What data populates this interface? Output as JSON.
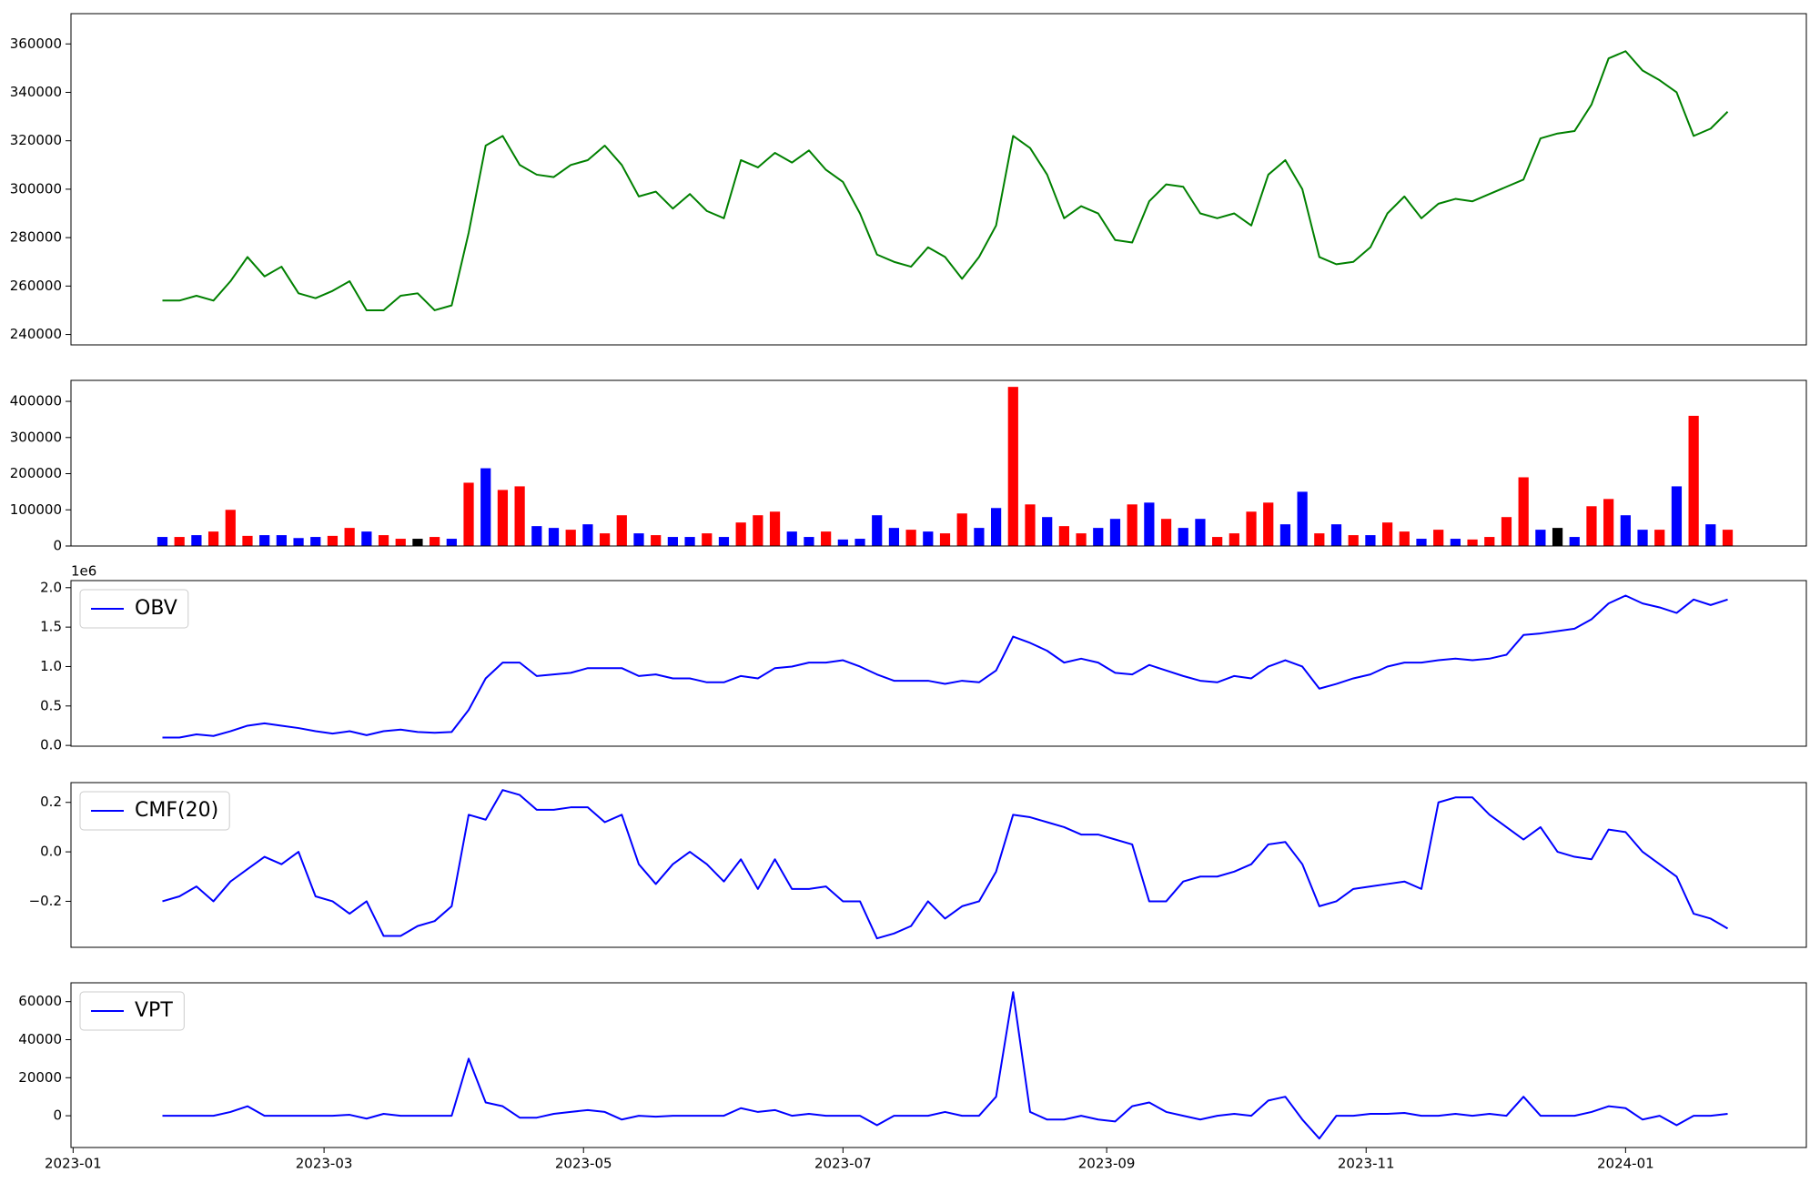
{
  "chart_data": [
    {
      "type": "line",
      "color": "#008000",
      "x": [
        21,
        25,
        29,
        33,
        37,
        41,
        45,
        49,
        53,
        57,
        61,
        65,
        69,
        73,
        77,
        81,
        85,
        89,
        93,
        97,
        101,
        105,
        109,
        113,
        117,
        121,
        125,
        129,
        133,
        137,
        141,
        145,
        149,
        153,
        157,
        161,
        165,
        169,
        173,
        177,
        181,
        185,
        189,
        193,
        197,
        201,
        205,
        209,
        213,
        217,
        221,
        225,
        229,
        233,
        237,
        241,
        245,
        249,
        253,
        257,
        261,
        265,
        269,
        273,
        277,
        281,
        285,
        289,
        293,
        297,
        301,
        305,
        309,
        313,
        317,
        321,
        325,
        329,
        333,
        337,
        341,
        345,
        349,
        353,
        357,
        361,
        365,
        369,
        373,
        377,
        381,
        385,
        389
      ],
      "values": [
        254000,
        254000,
        256000,
        254000,
        262000,
        272000,
        264000,
        268000,
        257000,
        255000,
        258000,
        262000,
        250000,
        250000,
        256000,
        257000,
        250000,
        252000,
        282000,
        318000,
        322000,
        310000,
        306000,
        305000,
        310000,
        312000,
        318000,
        310000,
        297000,
        299000,
        292000,
        298000,
        291000,
        288000,
        312000,
        309000,
        315000,
        311000,
        316000,
        308000,
        303000,
        290000,
        273000,
        270000,
        268000,
        276000,
        272000,
        263000,
        272000,
        285000,
        322000,
        317000,
        306000,
        288000,
        293000,
        290000,
        279000,
        278000,
        295000,
        302000,
        301000,
        290000,
        288000,
        290000,
        285000,
        306000,
        312000,
        300000,
        272000,
        269000,
        270000,
        276000,
        290000,
        297000,
        288000,
        294000,
        296000,
        295000,
        298000,
        301000,
        304000,
        321000,
        323000,
        324000,
        335000,
        354000,
        357000,
        349000,
        345000,
        340000,
        322000,
        325000,
        332000
      ],
      "xlim": [
        -0.5,
        407.5
      ],
      "ylim": [
        235700,
        372500
      ],
      "yticks": [
        240000,
        260000,
        280000,
        300000,
        320000,
        340000,
        360000
      ]
    },
    {
      "type": "bar",
      "x": [
        21,
        25,
        29,
        33,
        37,
        41,
        45,
        49,
        53,
        57,
        61,
        65,
        69,
        73,
        77,
        81,
        85,
        89,
        93,
        97,
        101,
        105,
        109,
        113,
        117,
        121,
        125,
        129,
        133,
        137,
        141,
        145,
        149,
        153,
        157,
        161,
        165,
        169,
        173,
        177,
        181,
        185,
        189,
        193,
        197,
        201,
        205,
        209,
        213,
        217,
        221,
        225,
        229,
        233,
        237,
        241,
        245,
        249,
        253,
        257,
        261,
        265,
        269,
        273,
        277,
        281,
        285,
        289,
        293,
        297,
        301,
        305,
        309,
        313,
        317,
        321,
        325,
        329,
        333,
        337,
        341,
        345,
        349,
        353,
        357,
        361,
        365,
        369,
        373,
        377,
        381,
        385,
        389
      ],
      "values": [
        25000,
        25000,
        30000,
        40000,
        100000,
        28000,
        30000,
        30000,
        22000,
        25000,
        28000,
        50000,
        40000,
        30000,
        20000,
        20000,
        25000,
        20000,
        175000,
        215000,
        155000,
        165000,
        55000,
        50000,
        45000,
        60000,
        35000,
        85000,
        35000,
        30000,
        25000,
        25000,
        35000,
        25000,
        65000,
        85000,
        95000,
        40000,
        25000,
        40000,
        18000,
        20000,
        85000,
        50000,
        45000,
        40000,
        35000,
        90000,
        50000,
        105000,
        440000,
        115000,
        80000,
        55000,
        35000,
        50000,
        75000,
        115000,
        120000,
        75000,
        50000,
        75000,
        25000,
        35000,
        95000,
        120000,
        60000,
        150000,
        35000,
        60000,
        30000,
        30000,
        65000,
        40000,
        20000,
        45000,
        20000,
        18000,
        25000,
        80000,
        190000,
        45000,
        50000,
        25000,
        110000,
        130000,
        85000,
        45000,
        45000,
        165000,
        360000,
        60000,
        45000
      ],
      "colors": [
        "blue",
        "red",
        "blue",
        "red",
        "red",
        "red",
        "blue",
        "blue",
        "blue",
        "blue",
        "red",
        "red",
        "blue",
        "red",
        "red",
        "black",
        "red",
        "blue",
        "red",
        "blue",
        "red",
        "red",
        "blue",
        "blue",
        "red",
        "blue",
        "red",
        "red",
        "blue",
        "red",
        "blue",
        "blue",
        "red",
        "blue",
        "red",
        "red",
        "red",
        "blue",
        "blue",
        "red",
        "blue",
        "blue",
        "blue",
        "blue",
        "red",
        "blue",
        "red",
        "red",
        "blue",
        "blue",
        "red",
        "red",
        "blue",
        "red",
        "red",
        "blue",
        "blue",
        "red",
        "blue",
        "red",
        "blue",
        "blue",
        "red",
        "red",
        "red",
        "red",
        "blue",
        "blue",
        "red",
        "blue",
        "red",
        "blue",
        "red",
        "red",
        "blue",
        "red",
        "blue",
        "red",
        "red",
        "red",
        "red",
        "blue",
        "black",
        "blue",
        "red",
        "red",
        "blue",
        "blue",
        "red",
        "blue",
        "red",
        "blue",
        "red"
      ],
      "xlim": [
        -0.5,
        407.5
      ],
      "ylim": [
        0,
        458000
      ],
      "yticks": [
        0,
        100000,
        200000,
        300000,
        400000
      ]
    },
    {
      "type": "line",
      "legend": "upper left",
      "offset_label": "1e6",
      "x": [
        21,
        25,
        29,
        33,
        37,
        41,
        45,
        49,
        53,
        57,
        61,
        65,
        69,
        73,
        77,
        81,
        85,
        89,
        93,
        97,
        101,
        105,
        109,
        113,
        117,
        121,
        125,
        129,
        133,
        137,
        141,
        145,
        149,
        153,
        157,
        161,
        165,
        169,
        173,
        177,
        181,
        185,
        189,
        193,
        197,
        201,
        205,
        209,
        213,
        217,
        221,
        225,
        229,
        233,
        237,
        241,
        245,
        249,
        253,
        257,
        261,
        265,
        269,
        273,
        277,
        281,
        285,
        289,
        293,
        297,
        301,
        305,
        309,
        313,
        317,
        321,
        325,
        329,
        333,
        337,
        341,
        345,
        349,
        353,
        357,
        361,
        365,
        369,
        373,
        377,
        381,
        385,
        389
      ],
      "series": [
        {
          "name": "OBV",
          "color": "#0000ff",
          "values": [
            0.1,
            0.1,
            0.14,
            0.12,
            0.18,
            0.25,
            0.28,
            0.25,
            0.22,
            0.18,
            0.15,
            0.18,
            0.13,
            0.18,
            0.2,
            0.17,
            0.16,
            0.17,
            0.45,
            0.85,
            1.05,
            1.05,
            0.88,
            0.9,
            0.92,
            0.98,
            0.98,
            0.98,
            0.88,
            0.9,
            0.85,
            0.85,
            0.8,
            0.8,
            0.88,
            0.85,
            0.98,
            1.0,
            1.05,
            1.05,
            1.08,
            1.0,
            0.9,
            0.82,
            0.82,
            0.82,
            0.78,
            0.82,
            0.8,
            0.95,
            1.38,
            1.3,
            1.2,
            1.05,
            1.1,
            1.05,
            0.92,
            0.9,
            1.02,
            0.95,
            0.88,
            0.82,
            0.8,
            0.88,
            0.85,
            1.0,
            1.08,
            1.0,
            0.72,
            0.78,
            0.85,
            0.9,
            1.0,
            1.05,
            1.05,
            1.08,
            1.1,
            1.08,
            1.1,
            1.15,
            1.4,
            1.42,
            1.45,
            1.48,
            1.6,
            1.8,
            1.9,
            1.8,
            1.75,
            1.68,
            1.85,
            1.78,
            1.85
          ]
        }
      ],
      "xlim": [
        -0.5,
        407.5
      ],
      "ylim": [
        -0.01,
        2.09
      ],
      "yticks": [
        {
          "value": 0,
          "label": "0.0"
        },
        0.5,
        {
          "value": 1,
          "label": "1.0"
        },
        1.5,
        {
          "value": 2,
          "label": "2.0"
        }
      ]
    },
    {
      "type": "line",
      "legend": "upper left",
      "x": [
        21,
        25,
        29,
        33,
        37,
        41,
        45,
        49,
        53,
        57,
        61,
        65,
        69,
        73,
        77,
        81,
        85,
        89,
        93,
        97,
        101,
        105,
        109,
        113,
        117,
        121,
        125,
        129,
        133,
        137,
        141,
        145,
        149,
        153,
        157,
        161,
        165,
        169,
        173,
        177,
        181,
        185,
        189,
        193,
        197,
        201,
        205,
        209,
        213,
        217,
        221,
        225,
        229,
        233,
        237,
        241,
        245,
        249,
        253,
        257,
        261,
        265,
        269,
        273,
        277,
        281,
        285,
        289,
        293,
        297,
        301,
        305,
        309,
        313,
        317,
        321,
        325,
        329,
        333,
        337,
        341,
        345,
        349,
        353,
        357,
        361,
        365,
        369,
        373,
        377,
        381,
        385,
        389
      ],
      "series": [
        {
          "name": "CMF(20)",
          "color": "#0000ff",
          "values": [
            -0.2,
            -0.18,
            -0.14,
            -0.2,
            -0.12,
            -0.07,
            -0.02,
            -0.05,
            0.0,
            -0.18,
            -0.2,
            -0.25,
            -0.2,
            -0.34,
            -0.34,
            -0.3,
            -0.28,
            -0.22,
            0.15,
            0.13,
            0.25,
            0.23,
            0.17,
            0.17,
            0.18,
            0.18,
            0.12,
            0.15,
            -0.05,
            -0.13,
            -0.05,
            0.0,
            -0.05,
            -0.12,
            -0.03,
            -0.15,
            -0.03,
            -0.15,
            -0.15,
            -0.14,
            -0.2,
            -0.2,
            -0.35,
            -0.33,
            -0.3,
            -0.2,
            -0.27,
            -0.22,
            -0.2,
            -0.08,
            0.15,
            0.14,
            0.12,
            0.1,
            0.07,
            0.07,
            0.05,
            0.03,
            -0.2,
            -0.2,
            -0.12,
            -0.1,
            -0.1,
            -0.08,
            -0.05,
            0.03,
            0.04,
            -0.05,
            -0.22,
            -0.2,
            -0.15,
            -0.14,
            -0.13,
            -0.12,
            -0.15,
            0.2,
            0.22,
            0.22,
            0.15,
            0.1,
            0.05,
            0.1,
            0.0,
            -0.02,
            -0.03,
            0.09,
            0.08,
            0.0,
            -0.05,
            -0.1,
            -0.25,
            -0.27,
            -0.31
          ]
        }
      ],
      "xlim": [
        -0.5,
        407.5
      ],
      "ylim": [
        -0.386,
        0.28
      ],
      "yticks": [
        {
          "value": -0.2,
          "label": "−0.2"
        },
        {
          "value": 0,
          "label": "0.0"
        },
        0.2
      ]
    },
    {
      "type": "line",
      "legend": "upper left",
      "x": [
        21,
        25,
        29,
        33,
        37,
        41,
        45,
        49,
        53,
        57,
        61,
        65,
        69,
        73,
        77,
        81,
        85,
        89,
        93,
        97,
        101,
        105,
        109,
        113,
        117,
        121,
        125,
        129,
        133,
        137,
        141,
        145,
        149,
        153,
        157,
        161,
        165,
        169,
        173,
        177,
        181,
        185,
        189,
        193,
        197,
        201,
        205,
        209,
        213,
        217,
        221,
        225,
        229,
        233,
        237,
        241,
        245,
        249,
        253,
        257,
        261,
        265,
        269,
        273,
        277,
        281,
        285,
        289,
        293,
        297,
        301,
        305,
        309,
        313,
        317,
        321,
        325,
        329,
        333,
        337,
        341,
        345,
        349,
        353,
        357,
        361,
        365,
        369,
        373,
        377,
        381,
        385,
        389
      ],
      "series": [
        {
          "name": "VPT",
          "color": "#0000ff",
          "values": [
            0,
            0,
            0,
            0,
            2000,
            5000,
            0,
            0,
            0,
            0,
            0,
            500,
            -1500,
            1000,
            0,
            0,
            0,
            0,
            30000,
            7000,
            5000,
            -1000,
            -1000,
            1000,
            2000,
            3000,
            2000,
            -2000,
            0,
            -500,
            0,
            0,
            0,
            0,
            4000,
            2000,
            3000,
            0,
            1000,
            0,
            0,
            0,
            -5000,
            0,
            0,
            0,
            2000,
            0,
            0,
            10000,
            65000,
            2000,
            -2000,
            -2000,
            0,
            -2000,
            -3000,
            5000,
            7000,
            2000,
            0,
            -2000,
            0,
            1000,
            0,
            8000,
            10000,
            -2000,
            -12000,
            0,
            0,
            1000,
            1000,
            1500,
            0,
            0,
            1000,
            0,
            1000,
            0,
            10000,
            0,
            0,
            0,
            2000,
            5000,
            4000,
            -2000,
            0,
            -5000,
            0,
            0,
            1000
          ]
        }
      ],
      "xlim": [
        -0.5,
        407.5
      ],
      "ylim": [
        -16700,
        69900
      ],
      "yticks": [
        0,
        20000,
        40000,
        60000
      ],
      "xticks": [
        {
          "value": 0,
          "label": "2023-01"
        },
        {
          "value": 59,
          "label": "2023-03"
        },
        {
          "value": 120,
          "label": "2023-05"
        },
        {
          "value": 181,
          "label": "2023-07"
        },
        {
          "value": 243,
          "label": "2023-09"
        },
        {
          "value": 304,
          "label": "2023-11"
        },
        {
          "value": 365,
          "label": "2024-01"
        }
      ]
    }
  ]
}
